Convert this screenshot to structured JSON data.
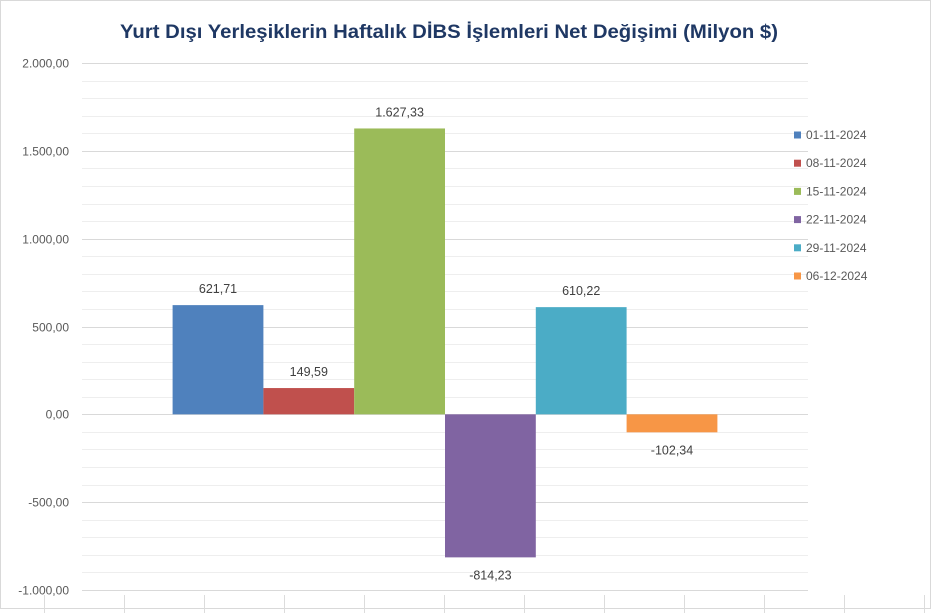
{
  "chart_data": {
    "type": "bar",
    "title": "Yurt Dışı Yerleşiklerin Haftalık DİBS İşlemleri Net Değişimi (Milyon $)",
    "ylim": [
      -1000,
      2000
    ],
    "yticks": [
      2000,
      1500,
      1000,
      500,
      0,
      -500,
      -1000
    ],
    "ytick_labels": [
      "2.000,00",
      "1.500,00",
      "1.000,00",
      "500,00",
      "0,00",
      "-500,00",
      "-1.000,00"
    ],
    "grid": true,
    "minor_grid": true,
    "legend": "right",
    "series": [
      {
        "name": "01-11-2024",
        "values": [
          621.71
        ],
        "label": "621,71",
        "color": "#4F81BD"
      },
      {
        "name": "08-11-2024",
        "values": [
          149.59
        ],
        "label": "149,59",
        "color": "#C0504D"
      },
      {
        "name": "15-11-2024",
        "values": [
          1627.33
        ],
        "label": "1.627,33",
        "color": "#9BBB59"
      },
      {
        "name": "22-11-2024",
        "values": [
          -814.23
        ],
        "label": "-814,23",
        "color": "#8064A2"
      },
      {
        "name": "29-11-2024",
        "values": [
          610.22
        ],
        "label": "610,22",
        "color": "#4BACC6"
      },
      {
        "name": "06-12-2024",
        "values": [
          -102.34
        ],
        "label": "-102,34",
        "color": "#F79646"
      }
    ],
    "colors": {
      "title": "#1F3864",
      "axis_text": "#595959",
      "data_label": "#404040",
      "major_grid": "#D9D9D9",
      "minor_grid": "#EEEEEE"
    }
  }
}
